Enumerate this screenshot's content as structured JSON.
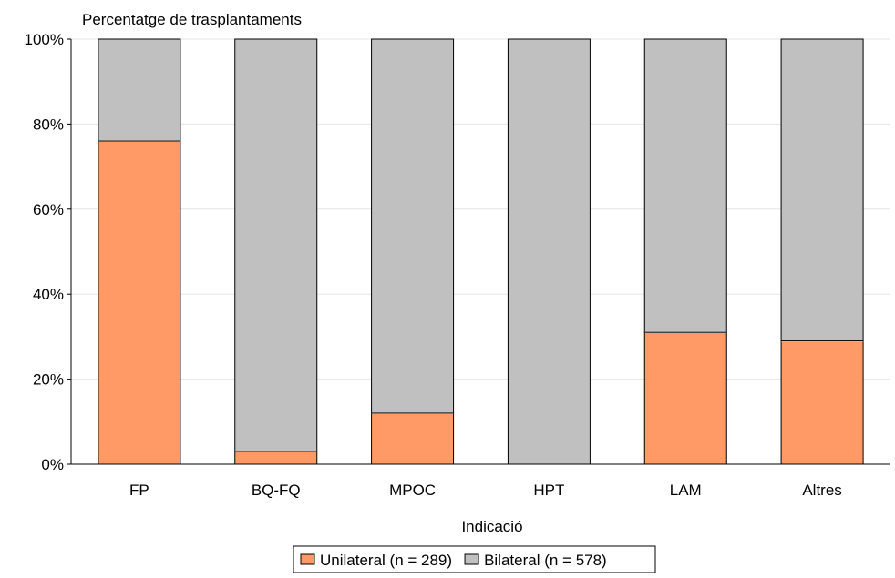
{
  "chart_data": {
    "type": "bar",
    "stacked": true,
    "title": "",
    "ylabel": "Percentatge de trasplantaments",
    "xlabel": "Indicació",
    "categories": [
      "FP",
      "BQ-FQ",
      "MPOC",
      "HPT",
      "LAM",
      "Altres"
    ],
    "series": [
      {
        "name": "Unilateral (n = 289)",
        "color": "#ff9966",
        "values": [
          76,
          3,
          12,
          0,
          31,
          29
        ]
      },
      {
        "name": "Bilateral (n = 578)",
        "color": "#c0c0c0",
        "values": [
          24,
          97,
          88,
          100,
          69,
          71
        ]
      }
    ],
    "ylim": [
      0,
      100
    ],
    "yticks": [
      0,
      20,
      40,
      60,
      80,
      100
    ],
    "ytick_labels": [
      "0%",
      "20%",
      "40%",
      "60%",
      "80%",
      "100%"
    ],
    "grid": true,
    "legend_position": "bottom"
  }
}
